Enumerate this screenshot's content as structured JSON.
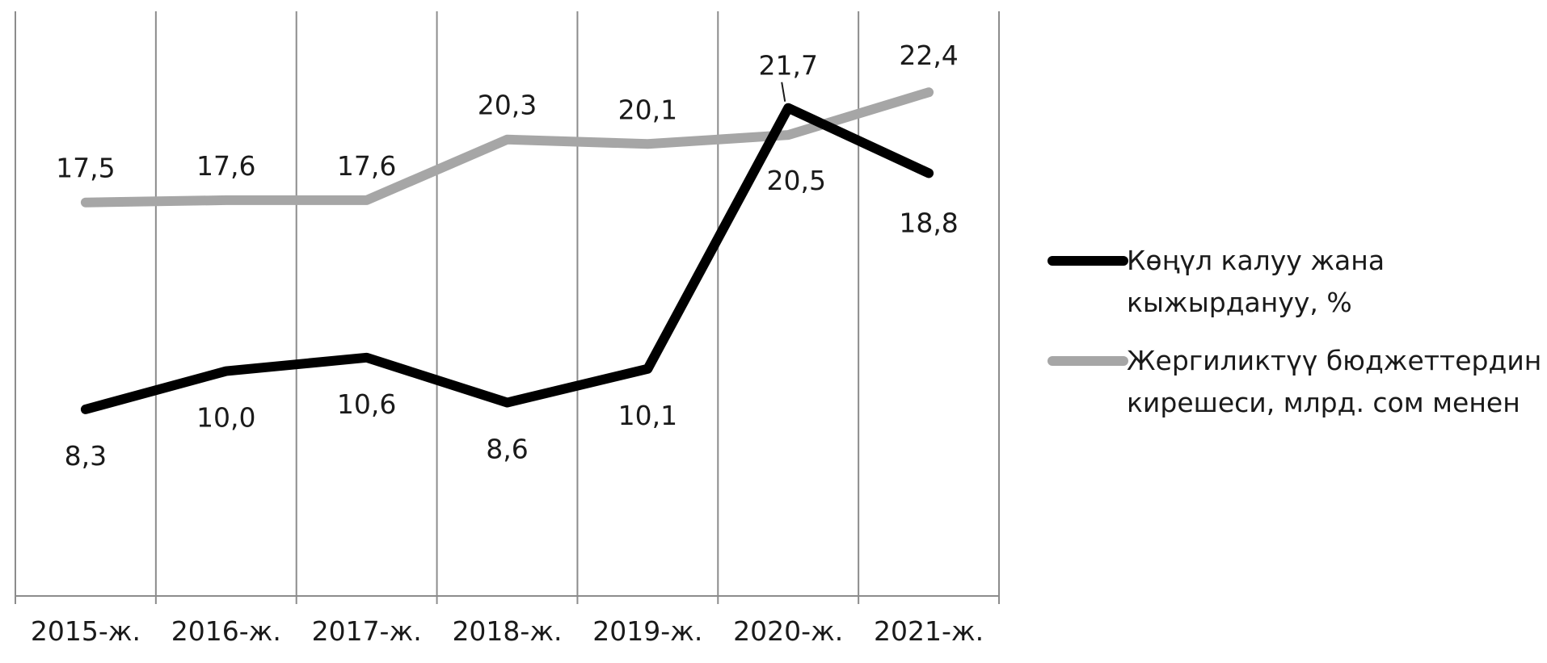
{
  "chart_data": {
    "type": "line",
    "categories": [
      "2015-ж.",
      "2016-ж.",
      "2017-ж.",
      "2018-ж.",
      "2019-ж.",
      "2020-ж.",
      "2021-ж."
    ],
    "series": [
      {
        "name": "Көңүл калуу жана кыжырдануу, %",
        "legend_lines": [
          "Көңүл калуу жана",
          "кыжырдануу, %"
        ],
        "color": "#000000",
        "values": [
          8.3,
          10.0,
          10.6,
          8.6,
          10.1,
          21.7,
          18.8
        ],
        "value_labels": [
          "8,3",
          "10,0",
          "10,6",
          "8,6",
          "10,1",
          "21,7",
          "18,8"
        ]
      },
      {
        "name": "Жергиликтүү бюджеттердин кирешеси, млрд. сом менен",
        "legend_lines": [
          "Жергиликтүү бюджеттердин",
          "кирешеси, млрд. сом менен"
        ],
        "color": "#a6a6a6",
        "values": [
          17.5,
          17.6,
          17.6,
          20.3,
          20.1,
          20.5,
          22.4
        ],
        "value_labels": [
          "17,5",
          "17,6",
          "17,6",
          "20,3",
          "20,1",
          "20,5",
          "22,4"
        ]
      }
    ],
    "ylim": [
      0,
      26
    ],
    "grid": "vertical",
    "legend_position": "right"
  }
}
